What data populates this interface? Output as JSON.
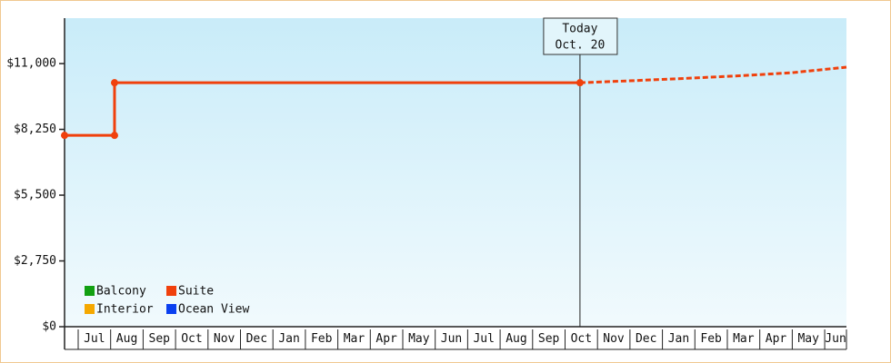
{
  "chart_data": {
    "type": "step-line",
    "categories": [
      "Jul",
      "Aug",
      "Sep",
      "Oct",
      "Nov",
      "Dec",
      "Jan",
      "Feb",
      "Mar",
      "Apr",
      "May",
      "Jun",
      "Jul",
      "Aug",
      "Sep",
      "Oct",
      "Nov",
      "Dec",
      "Jan",
      "Feb",
      "Mar",
      "Apr",
      "May",
      "Jun"
    ],
    "xlim": [
      -0.42,
      23.67
    ],
    "ylim": [
      0,
      12900
    ],
    "yticks": [
      {
        "value": 0,
        "label": "$0"
      },
      {
        "value": 2750,
        "label": "$2,750"
      },
      {
        "value": 5500,
        "label": "$5,500"
      },
      {
        "value": 8250,
        "label": "$8,250"
      },
      {
        "value": 11000,
        "label": "$11,000"
      }
    ],
    "series": [
      {
        "name": "Balcony",
        "color": "#12a012",
        "x": [],
        "values": []
      },
      {
        "name": "Interior",
        "color": "#f5a800",
        "x": [],
        "values": []
      },
      {
        "name": "Suite",
        "color": "#f0400c",
        "x": [
          -0.42,
          1.12,
          1.12,
          15.46
        ],
        "values": [
          8000,
          8000,
          10200,
          10200
        ],
        "forecast_x": [
          15.46,
          17,
          19,
          20.5,
          22,
          23.67
        ],
        "forecast_values": [
          10200,
          10280,
          10400,
          10500,
          10620,
          10850
        ]
      },
      {
        "name": "Ocean View",
        "color": "#0a40f0",
        "x": [],
        "values": []
      }
    ],
    "annotation": {
      "x": 15.46,
      "lines": [
        "Today",
        "Oct. 20"
      ]
    }
  }
}
